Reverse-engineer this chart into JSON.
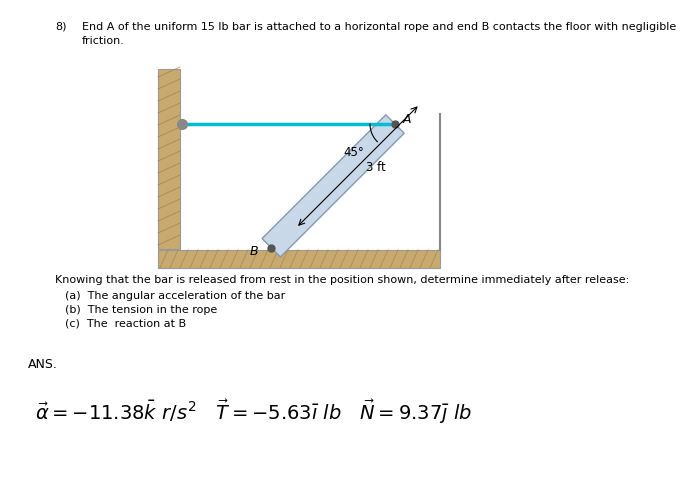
{
  "problem_number": "8)",
  "problem_text_line1": "End A of the uniform 15 lb bar is attached to a horizontal rope and end B contacts the floor with negligible",
  "problem_text_line2": "friction.",
  "knowing_text": "Knowing that the bar is released from rest in the position shown, determine immediately after release:",
  "parts": [
    "(a)  The angular acceleration of the bar",
    "(b)  The tension in the rope",
    "(c)  The  reaction at B"
  ],
  "ans_label": "ANS.",
  "bg_color": "#ffffff",
  "text_color": "#000000",
  "wall_color": "#c8a96e",
  "floor_color": "#c8a96e",
  "rope_color": "#00bcd4",
  "bar_face_color": "#c8d8e8",
  "bar_edge_color": "#8899aa",
  "angle_label": "45°",
  "length_label": "3 ft",
  "label_A": "A",
  "label_B": "B"
}
